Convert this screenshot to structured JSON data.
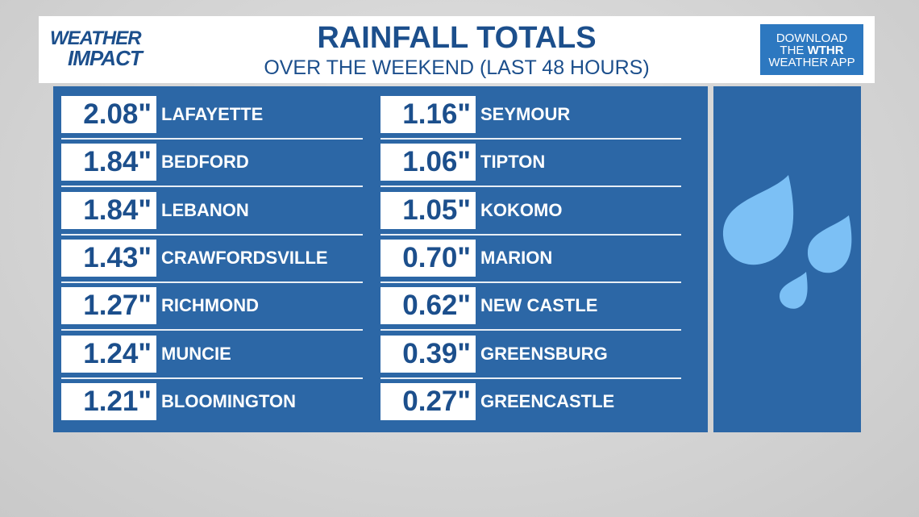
{
  "header": {
    "logo": [
      "WEATHER",
      "IMPACT"
    ],
    "title": "RAINFALL TOTALS",
    "subtitle": "OVER THE WEEKEND (LAST 48 HOURS)",
    "promo": [
      "DOWNLOAD",
      "THE",
      "WTHR",
      "WEATHER APP"
    ]
  },
  "table": {
    "columns": [
      [
        [
          "2.08\"",
          "LAFAYETTE"
        ],
        [
          "1.84\"",
          "BEDFORD"
        ],
        [
          "1.84\"",
          "LEBANON"
        ],
        [
          "1.43\"",
          "CRAWFORDSVILLE"
        ],
        [
          "1.27\"",
          "RICHMOND"
        ],
        [
          "1.24\"",
          "MUNCIE"
        ],
        [
          "1.21\"",
          "BLOOMINGTON"
        ]
      ],
      [
        [
          "1.16\"",
          "SEYMOUR"
        ],
        [
          "1.06\"",
          "TIPTON"
        ],
        [
          "1.05\"",
          "KOKOMO"
        ],
        [
          "0.70\"",
          "MARION"
        ],
        [
          "0.62\"",
          "NEW CASTLE"
        ],
        [
          "0.39\"",
          "GREENSBURG"
        ],
        [
          "0.27\"",
          "GREENCASTLE"
        ]
      ]
    ]
  }
}
